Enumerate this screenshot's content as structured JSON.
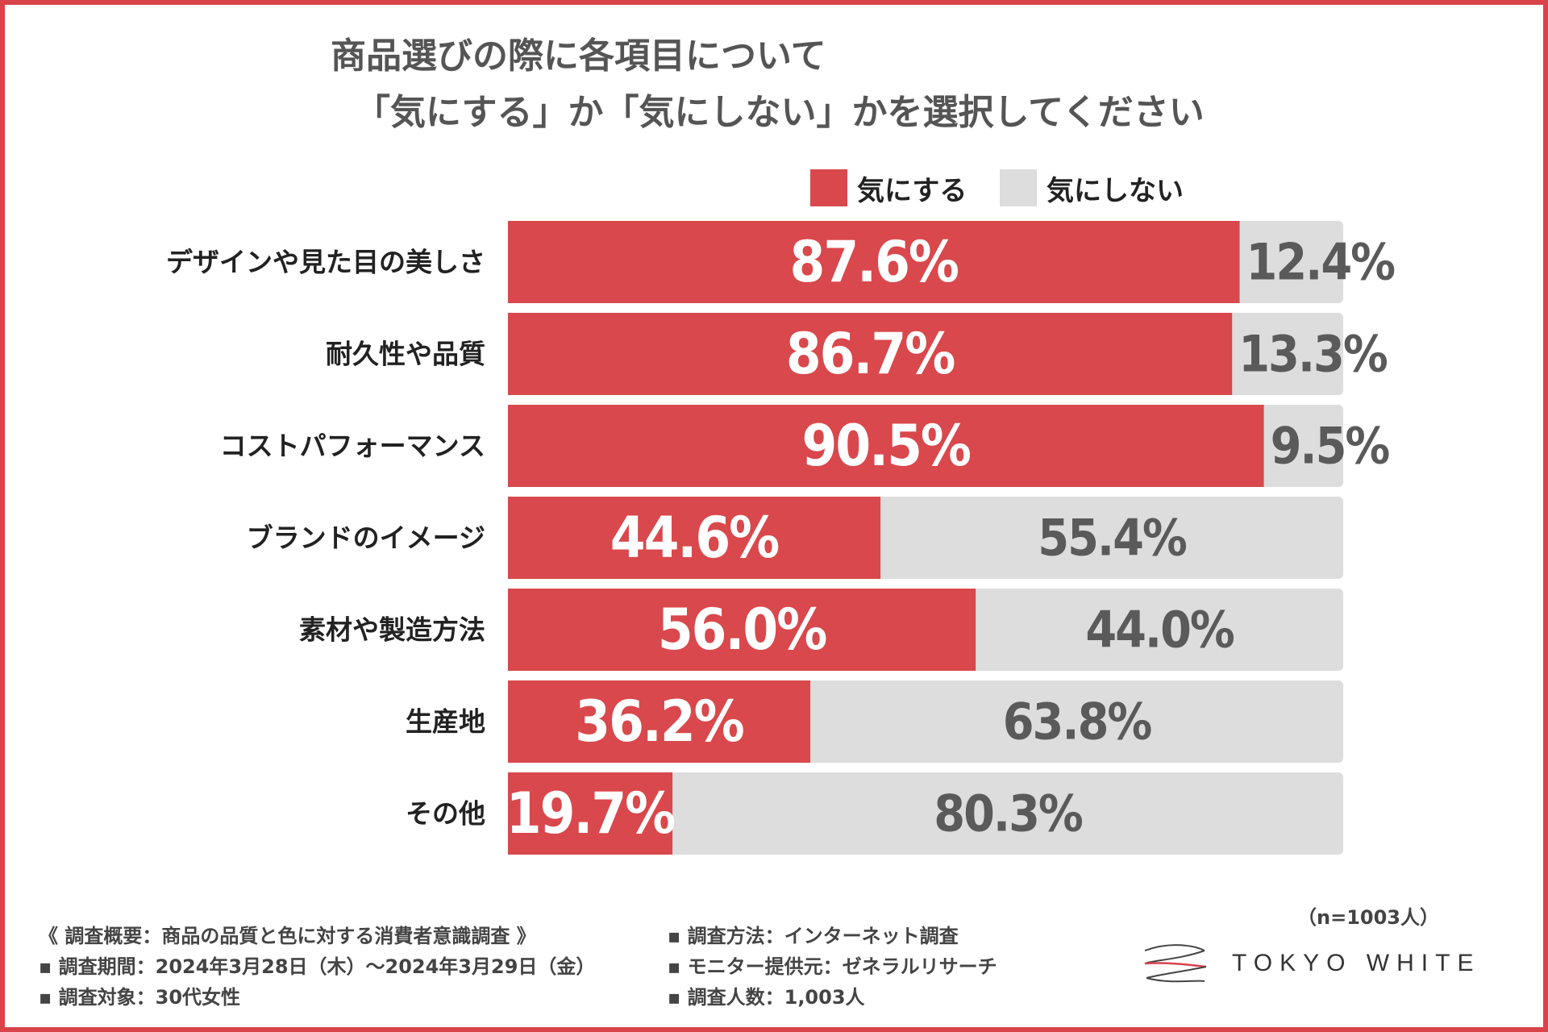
{
  "header": {
    "title_line1": "商品選びの際に各項目について",
    "title_line2": "「気にする」か「気にしない」かを選択してください"
  },
  "legend": [
    {
      "label": "気にする",
      "color": "#d9484c"
    },
    {
      "label": "気にしない",
      "color": "#dddddd"
    }
  ],
  "colors": {
    "care": "#d9484c",
    "not_care": "#dddddd",
    "label_on_red": "#ffffff",
    "label_on_gray": "#5a5a5a",
    "frame": "#d9434a"
  },
  "chart_data": {
    "type": "bar",
    "orientation": "horizontal",
    "stacked": true,
    "categories": [
      "デザインや見た目の美しさ",
      "耐久性や品質",
      "コストパフォーマンス",
      "ブランドのイメージ",
      "素材や製造方法",
      "生産地",
      "その他"
    ],
    "series": [
      {
        "name": "気にする",
        "values": [
          87.6,
          86.7,
          90.5,
          44.6,
          56.0,
          36.2,
          19.7
        ],
        "labels": [
          "87.6%",
          "86.7%",
          "90.5%",
          "44.6%",
          "56.0%",
          "36.2%",
          "19.7%"
        ]
      },
      {
        "name": "気にしない",
        "values": [
          12.4,
          13.3,
          9.5,
          55.4,
          44.0,
          63.8,
          80.3
        ],
        "labels": [
          "12.4%",
          "13.3%",
          "9.5%",
          "55.4%",
          "44.0%",
          "63.8%",
          "80.3%"
        ]
      }
    ],
    "xlim": [
      0,
      100
    ],
    "unit": "%",
    "legend_position": "top-right"
  },
  "footer": {
    "overview": "《 調査概要：商品の品質と色に対する消費者意識調査 》",
    "period": "▪ 調査期間：2024年3月28日（木）〜2024年3月29日（金）",
    "target": "▪ 調査対象：30代女性",
    "method": "▪ 調査方法：インターネット調査",
    "provider": "▪ モニター提供元：ゼネラルリサーチ",
    "respondents": "▪ 調査人数：1,003人",
    "sample_size": "（n=1003人）"
  },
  "logo": {
    "text": "TOKYO WHITE",
    "icon": "thread-loop-icon"
  }
}
